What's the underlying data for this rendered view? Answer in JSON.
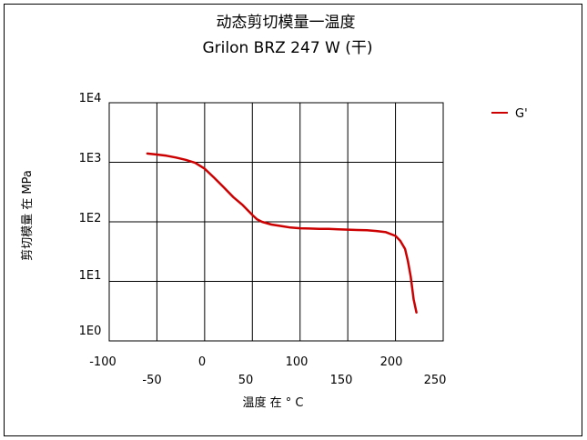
{
  "chart_data": {
    "type": "line",
    "title": "动态剪切模量一温度",
    "subtitle": "Grilon BRZ 247 W (干)",
    "xlabel": "温度 在 ° C",
    "ylabel": "剪切模量 在  MPa",
    "x_scale": "linear",
    "y_scale": "log",
    "xlim": [
      -100,
      250
    ],
    "ylim": [
      1,
      10000
    ],
    "x_ticks_upper": [
      "-100",
      "0",
      "100",
      "200"
    ],
    "x_ticks_lower": [
      "-50",
      "50",
      "150",
      "250"
    ],
    "y_ticks": [
      "1E0",
      "1E1",
      "1E2",
      "1E3",
      "1E4"
    ],
    "grid": true,
    "legend_position": "top-right",
    "line_color": "#cc0000",
    "series": [
      {
        "name": "G'",
        "x": [
          -60,
          -50,
          -40,
          -30,
          -20,
          -10,
          0,
          10,
          20,
          30,
          40,
          50,
          55,
          60,
          70,
          80,
          90,
          100,
          110,
          120,
          130,
          140,
          150,
          160,
          170,
          180,
          190,
          200,
          205,
          210,
          213,
          216,
          219,
          222
        ],
        "y": [
          1400,
          1350,
          1290,
          1200,
          1100,
          980,
          780,
          550,
          380,
          260,
          190,
          130,
          110,
          100,
          90,
          85,
          80,
          78,
          77,
          76,
          76,
          75,
          74,
          73,
          72,
          70,
          67,
          58,
          48,
          35,
          22,
          12,
          5,
          3
        ]
      }
    ]
  }
}
